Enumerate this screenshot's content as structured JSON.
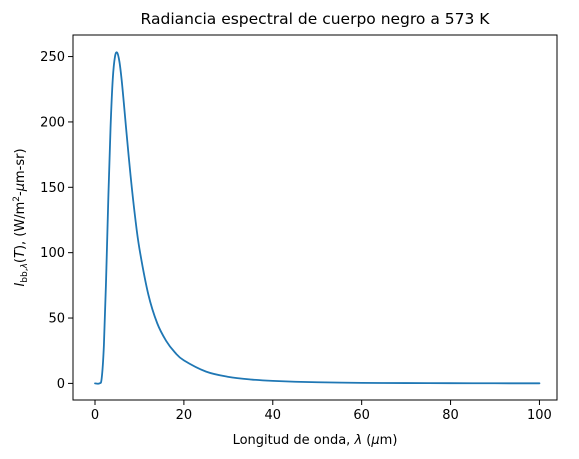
{
  "chart_data": {
    "type": "line",
    "title": "Radiancia espectral de cuerpo negro a 573 K",
    "xlabel": "Longitud de onda, λ (μm)",
    "ylabel": "I_bb,λ(T), (W/m²-μm-sr)",
    "xlim": [
      -4.95,
      103.95
    ],
    "ylim": [
      -12.7,
      266.5
    ],
    "xticks": [
      0,
      20,
      40,
      60,
      80,
      100
    ],
    "yticks": [
      0,
      50,
      100,
      150,
      200,
      250
    ],
    "grid": false,
    "series": [
      {
        "color": "#1f77b4",
        "x": [
          0,
          1,
          1.5,
          2,
          2.5,
          3,
          3.5,
          4,
          4.5,
          5,
          5.5,
          6,
          6.5,
          7,
          8,
          9,
          10,
          12,
          14,
          16,
          18,
          20,
          25,
          30,
          35,
          40,
          50,
          60,
          70,
          80,
          90,
          100
        ],
        "y": [
          0,
          0.02,
          3.8,
          29,
          80,
          142,
          196,
          233,
          250,
          253,
          246,
          232,
          214,
          195,
          159,
          128,
          103,
          68,
          46,
          32.6,
          23.6,
          17.6,
          9.0,
          5.0,
          3.0,
          1.95,
          0.86,
          0.43,
          0.24,
          0.14,
          0.09,
          0.06
        ]
      }
    ]
  }
}
